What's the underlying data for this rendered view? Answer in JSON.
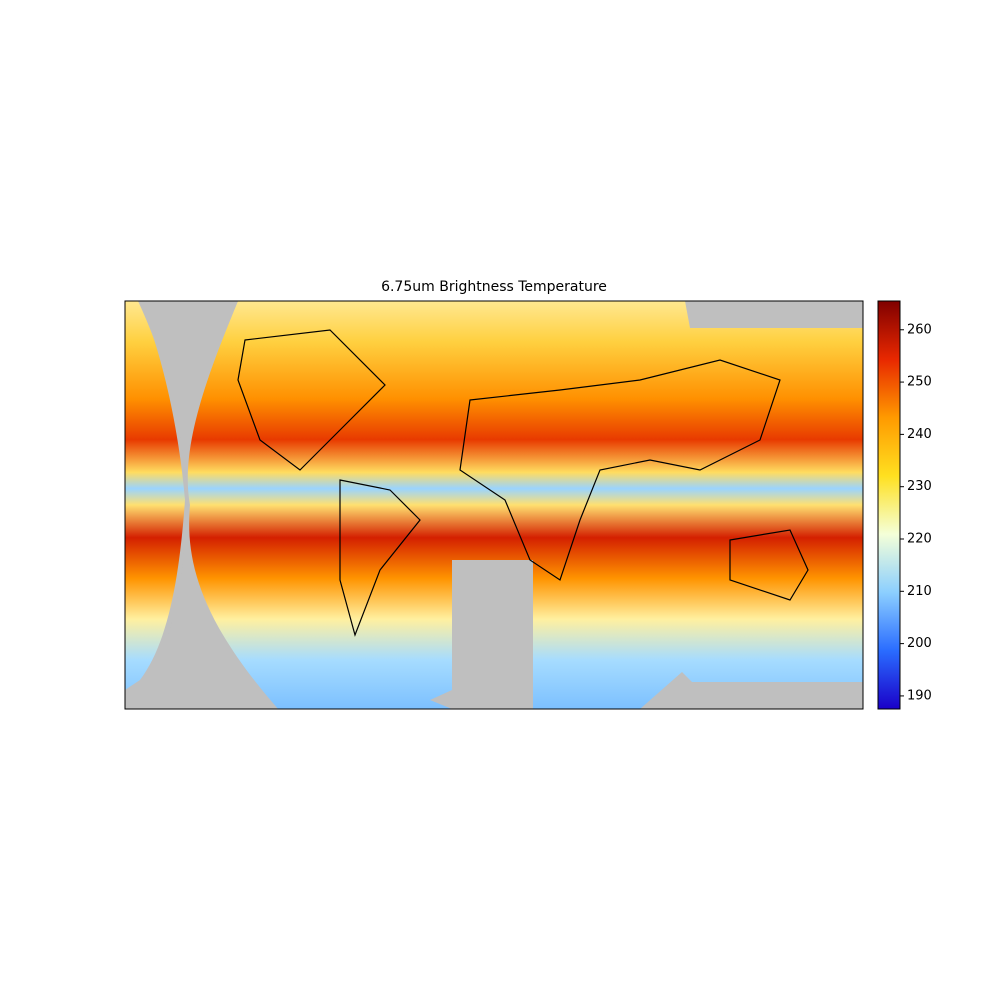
{
  "chart_data": {
    "type": "map",
    "title": "6.75um Brightness Temperature",
    "clim": [
      187.5,
      265.5
    ],
    "cticks": [
      190,
      200,
      210,
      220,
      230,
      240,
      250,
      260
    ],
    "colormap": [
      "#1a00c8",
      "#2a6cff",
      "#8ccfff",
      "#f4ffd8",
      "#ffe020",
      "#ff9a00",
      "#e82800",
      "#800000"
    ]
  }
}
